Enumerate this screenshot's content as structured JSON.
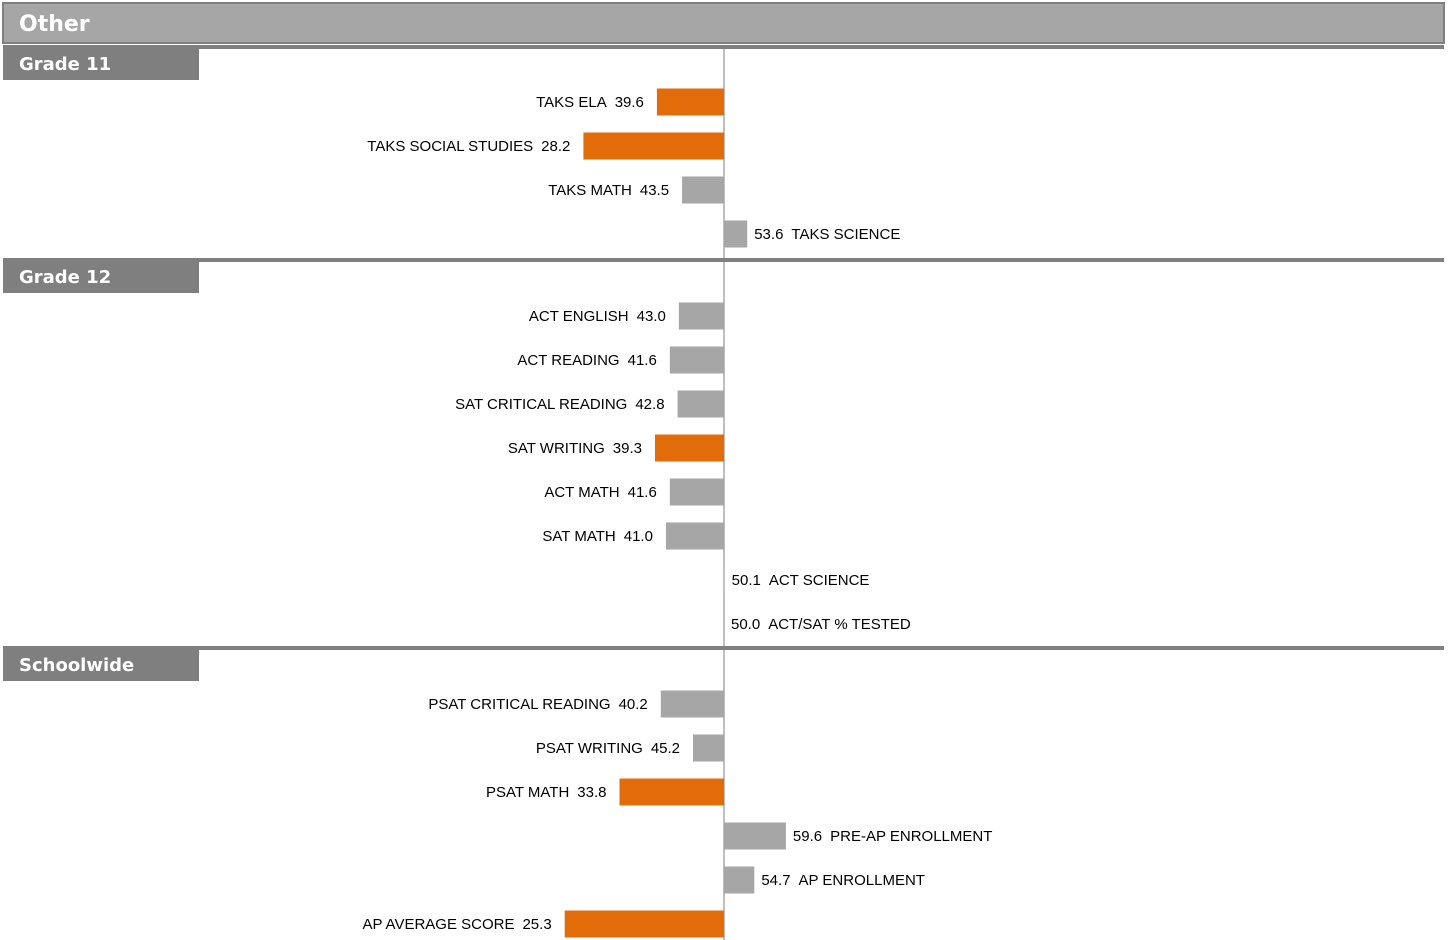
{
  "page_title": "Other",
  "colors": {
    "highlight": "#E36C0A",
    "normal": "#A6A6A6",
    "title_bar": "#A6A6A6",
    "section_tab": "#7F7F7F",
    "axis": "#7F7F7F"
  },
  "chart_data": {
    "type": "bar",
    "orientation": "horizontal",
    "baseline": 50,
    "sections": [
      {
        "name": "Grade 11",
        "items": [
          {
            "label": "TAKS ELA",
            "value": 39.6,
            "value_text": "39.6",
            "highlight": true
          },
          {
            "label": "TAKS SOCIAL STUDIES",
            "value": 28.2,
            "value_text": "28.2",
            "highlight": true
          },
          {
            "label": "TAKS MATH",
            "value": 43.5,
            "value_text": "43.5",
            "highlight": false
          },
          {
            "label": "TAKS SCIENCE",
            "value": 53.6,
            "value_text": "53.6",
            "highlight": false
          }
        ]
      },
      {
        "name": "Grade 12",
        "items": [
          {
            "label": "ACT ENGLISH",
            "value": 43.0,
            "value_text": "43.0",
            "highlight": false
          },
          {
            "label": "ACT READING",
            "value": 41.6,
            "value_text": "41.6",
            "highlight": false
          },
          {
            "label": "SAT CRITICAL READING",
            "value": 42.8,
            "value_text": "42.8",
            "highlight": false
          },
          {
            "label": "SAT WRITING",
            "value": 39.3,
            "value_text": "39.3",
            "highlight": true
          },
          {
            "label": "ACT MATH",
            "value": 41.6,
            "value_text": "41.6",
            "highlight": false
          },
          {
            "label": "SAT MATH",
            "value": 41.0,
            "value_text": "41.0",
            "highlight": false
          },
          {
            "label": "ACT SCIENCE",
            "value": 50.1,
            "value_text": "50.1",
            "highlight": false
          },
          {
            "label": "ACT/SAT % TESTED",
            "value": 50.0,
            "value_text": "50.0",
            "highlight": false
          }
        ]
      },
      {
        "name": "Schoolwide",
        "items": [
          {
            "label": "PSAT CRITICAL READING",
            "value": 40.2,
            "value_text": "40.2",
            "highlight": false
          },
          {
            "label": "PSAT WRITING",
            "value": 45.2,
            "value_text": "45.2",
            "highlight": false
          },
          {
            "label": "PSAT MATH",
            "value": 33.8,
            "value_text": "33.8",
            "highlight": true
          },
          {
            "label": "PRE-AP ENROLLMENT",
            "value": 59.6,
            "value_text": "59.6",
            "highlight": false
          },
          {
            "label": "AP ENROLLMENT",
            "value": 54.7,
            "value_text": "54.7",
            "highlight": false
          },
          {
            "label": "AP AVERAGE SCORE",
            "value": 25.3,
            "value_text": "25.3",
            "highlight": true
          }
        ]
      }
    ]
  }
}
